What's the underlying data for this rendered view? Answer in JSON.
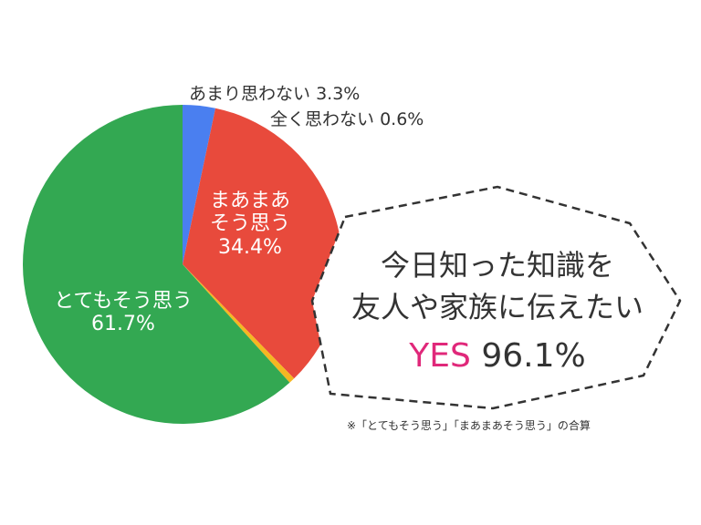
{
  "chart_data": {
    "type": "pie",
    "categories": [
      "あまり思わない",
      "まあまあそう思う",
      "全く思わない",
      "とてもそう思う"
    ],
    "values": [
      3.3,
      34.4,
      0.6,
      61.7
    ],
    "value_labels": [
      "3.3%",
      "34.4%",
      "0.6%",
      "61.7%"
    ],
    "colors": [
      "#4a7ff0",
      "#e84a3c",
      "#f5b722",
      "#33a852"
    ]
  },
  "callout": {
    "lines": [
      "今日知った知識を",
      "友人や家族に伝えたい"
    ],
    "answer": "YES",
    "result": "96.1%"
  },
  "note": "※「とてもそう思う」「まあまあそう思う」の合算"
}
